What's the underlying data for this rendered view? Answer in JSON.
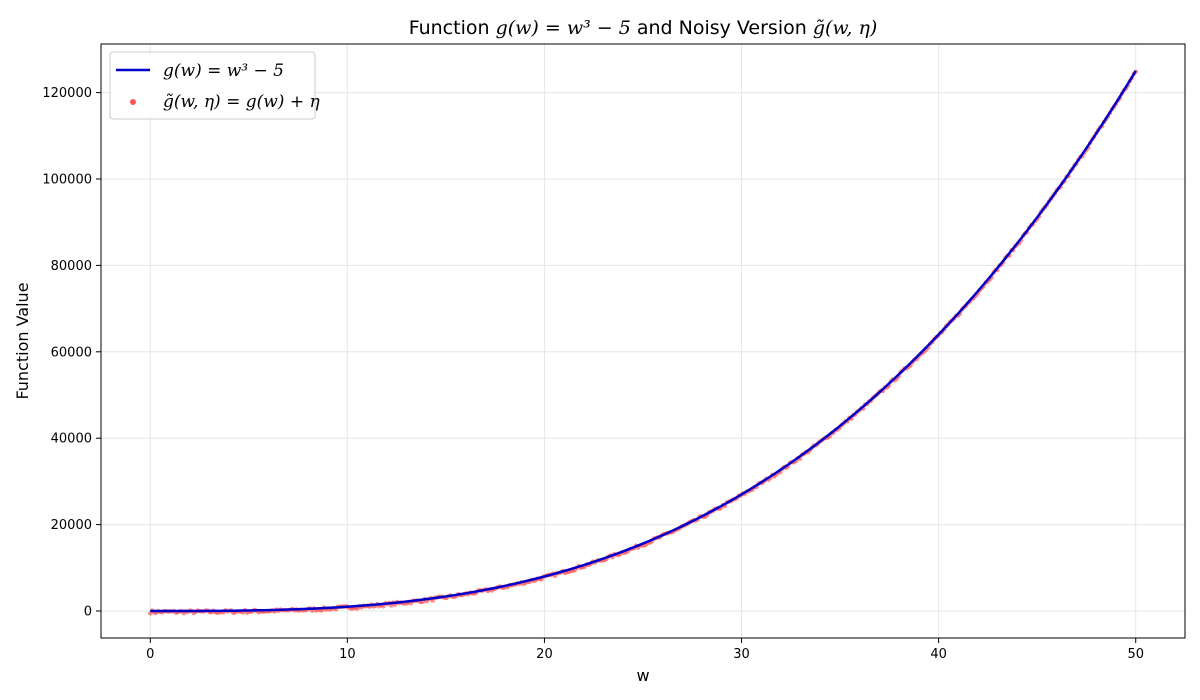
{
  "chart_data": {
    "type": "line",
    "title_parts": {
      "prefix": "Function ",
      "formula": "g(w) = w³ − 5",
      "middle": " and Noisy Version ",
      "noisy": "g̃(w, η)"
    },
    "xlabel": "w",
    "ylabel": "Function Value",
    "xlim": [
      -2.5,
      52.5
    ],
    "ylim": [
      -6250,
      131250
    ],
    "xticks": [
      0,
      10,
      20,
      30,
      40,
      50
    ],
    "yticks": [
      0,
      20000,
      40000,
      60000,
      80000,
      100000,
      120000
    ],
    "grid": true,
    "legend_position": "top-left",
    "series": [
      {
        "name": "g(w) = w³ − 5",
        "kind": "line",
        "color": "#0000cc",
        "x": [
          0,
          5,
          10,
          15,
          20,
          25,
          30,
          35,
          40,
          45,
          50
        ],
        "y": [
          -5,
          120,
          995,
          3370,
          7995,
          15620,
          26995,
          42870,
          63995,
          91120,
          124995
        ]
      },
      {
        "name": "g̃(w, η) = g(w) + η",
        "kind": "scatter",
        "color": "#ff5555",
        "x": [
          0,
          5,
          10,
          15,
          20,
          25,
          30,
          35,
          40,
          45,
          50
        ],
        "y": [
          -5,
          120,
          995,
          3370,
          7995,
          15620,
          26995,
          42870,
          63995,
          91120,
          124995
        ]
      }
    ]
  }
}
